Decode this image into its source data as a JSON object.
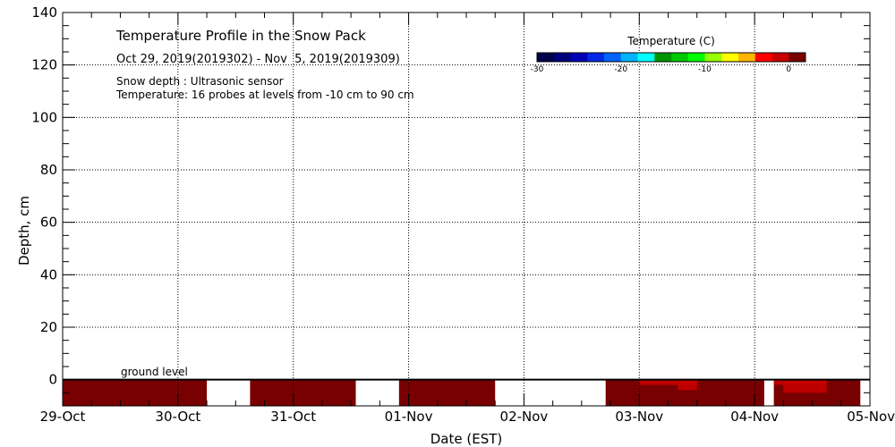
{
  "chart_data": {
    "type": "heatmap",
    "title": "Temperature Profile in the Snow Pack",
    "subtitle": "Oct 29, 2019(2019302) - Nov  5, 2019(2019309)",
    "notes": [
      "Snow depth : Ultrasonic sensor",
      "Temperature: 16 probes at levels from -10 cm to 90 cm"
    ],
    "xlabel": "Date (EST)",
    "ylabel": "Depth, cm",
    "x_start": "2019-10-29",
    "x_end": "2019-11-05",
    "x_ticks": [
      "29-Oct",
      "30-Oct",
      "31-Oct",
      "01-Nov",
      "02-Nov",
      "03-Nov",
      "04-Nov",
      "05-Nov"
    ],
    "ylim": [
      -10,
      140
    ],
    "y_ticks": [
      0,
      20,
      40,
      60,
      80,
      100,
      120,
      140
    ],
    "grid": true,
    "ground_level_label": "ground level",
    "ground_level_depth": 0,
    "colorbar": {
      "title": "Temperature (C)",
      "range": [
        -30,
        2
      ],
      "tick_labels": [
        "-30",
        "-20",
        "-10",
        "0"
      ],
      "tick_values": [
        -30,
        -20,
        -10,
        0
      ],
      "colors": [
        "#00004b",
        "#000078",
        "#0000b4",
        "#0028e6",
        "#0064ff",
        "#00b4ff",
        "#00ffff",
        "#009600",
        "#00c800",
        "#00ff00",
        "#96ff00",
        "#ffff00",
        "#ffb400",
        "#ff0000",
        "#c80000",
        "#780000"
      ]
    },
    "data_blocks": [
      {
        "start": "2019-10-29T00:00",
        "end": "2019-10-30T06:00",
        "depth_top": 0,
        "depth_bottom": -10,
        "temperature": 1
      },
      {
        "start": "2019-10-30T15:00",
        "end": "2019-10-31T13:00",
        "depth_top": 0,
        "depth_bottom": -10,
        "temperature": 1
      },
      {
        "start": "2019-10-31T22:00",
        "end": "2019-11-01T18:00",
        "depth_top": 0,
        "depth_bottom": -10,
        "temperature": 1
      },
      {
        "start": "2019-11-02T17:00",
        "end": "2019-11-04T02:00",
        "depth_top": 0,
        "depth_bottom": -10,
        "temperature": 1
      },
      {
        "start": "2019-11-04T04:00",
        "end": "2019-11-04T22:00",
        "depth_top": 0,
        "depth_bottom": -10,
        "temperature": 1
      }
    ],
    "cooler_patches": [
      {
        "start": "2019-11-03T00:00",
        "end": "2019-11-03T12:00",
        "depth_top": 0,
        "depth_bottom": -2,
        "temperature": -1
      },
      {
        "start": "2019-11-03T08:00",
        "end": "2019-11-03T12:00",
        "depth_top": 0,
        "depth_bottom": -4,
        "temperature": -1
      },
      {
        "start": "2019-11-04T04:00",
        "end": "2019-11-04T15:00",
        "depth_top": 0,
        "depth_bottom": -2,
        "temperature": -1
      },
      {
        "start": "2019-11-04T06:00",
        "end": "2019-11-04T15:00",
        "depth_top": 0,
        "depth_bottom": -5,
        "temperature": -1
      }
    ]
  }
}
